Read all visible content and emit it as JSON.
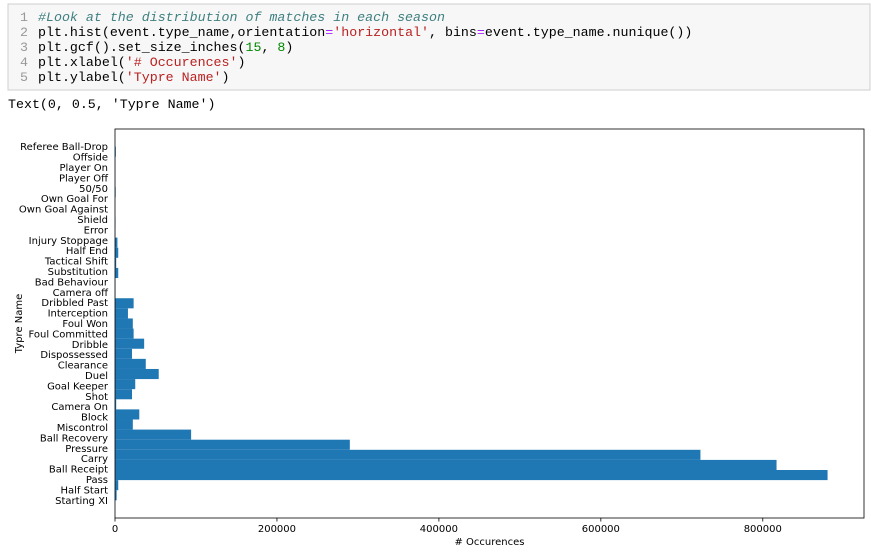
{
  "code": {
    "lines": [
      {
        "number": "1",
        "tokens": [
          {
            "text": "#Look at the distribution of matches in each season",
            "color": "#408080"
          }
        ]
      },
      {
        "number": "2",
        "tokens": [
          {
            "text": "plt.hist(event.type_name,orientation",
            "color": "#000000"
          },
          {
            "text": "=",
            "color": "#aa22ff"
          },
          {
            "text": "'horizontal'",
            "color": "#ba2121"
          },
          {
            "text": ", bins",
            "color": "#000000"
          },
          {
            "text": "=",
            "color": "#aa22ff"
          },
          {
            "text": "event.type_name.nunique())",
            "color": "#000000"
          }
        ]
      },
      {
        "number": "3",
        "tokens": [
          {
            "text": "plt.gcf().set_size_inches(",
            "color": "#000000"
          },
          {
            "text": "15",
            "color": "#008800"
          },
          {
            "text": ", ",
            "color": "#000000"
          },
          {
            "text": "8",
            "color": "#008800"
          },
          {
            "text": ")",
            "color": "#000000"
          }
        ]
      },
      {
        "number": "4",
        "tokens": [
          {
            "text": "plt.xlabel(",
            "color": "#000000"
          },
          {
            "text": "'# Occurences'",
            "color": "#ba2121"
          },
          {
            "text": ")",
            "color": "#000000"
          }
        ]
      },
      {
        "number": "5",
        "tokens": [
          {
            "text": "plt.ylabel(",
            "color": "#000000"
          },
          {
            "text": "'Typre Name'",
            "color": "#ba2121"
          },
          {
            "text": ")",
            "color": "#000000"
          }
        ]
      }
    ]
  },
  "output": "Text(0, 0.5, 'Typre Name')",
  "chart_data": {
    "type": "hbar-hist",
    "x_label": "# Occurences",
    "y_label": "Typre Name",
    "categories": [
      "Starting XI",
      "Half Start",
      "Pass",
      "Ball Receipt",
      "Carry",
      "Pressure",
      "Ball Recovery",
      "Miscontrol",
      "Block",
      "Camera On",
      "Shot",
      "Goal Keeper",
      "Duel",
      "Clearance",
      "Dispossessed",
      "Dribble",
      "Foul Committed",
      "Foul Won",
      "Interception",
      "Dribbled Past",
      "Camera off",
      "Bad Behaviour",
      "Substitution",
      "Tactical Shift",
      "Half End",
      "Injury Stoppage",
      "Error",
      "Shield",
      "Own Goal Against",
      "Own Goal For",
      "50/50",
      "Player Off",
      "Player On",
      "Offside",
      "Referee Ball-Drop"
    ],
    "values": [
      2000,
      4000,
      880000,
      817000,
      723000,
      290000,
      94000,
      22000,
      30000,
      1500,
      21000,
      25000,
      54000,
      38000,
      21000,
      36000,
      23000,
      22000,
      16000,
      23000,
      500,
      500,
      4000,
      1500,
      4000,
      3000,
      300,
      500,
      100,
      100,
      800,
      300,
      300,
      300,
      1000
    ],
    "color": "#1f77b4",
    "xlim": [
      0,
      925000
    ],
    "xticks": [
      0,
      200000,
      400000,
      600000,
      800000
    ]
  }
}
